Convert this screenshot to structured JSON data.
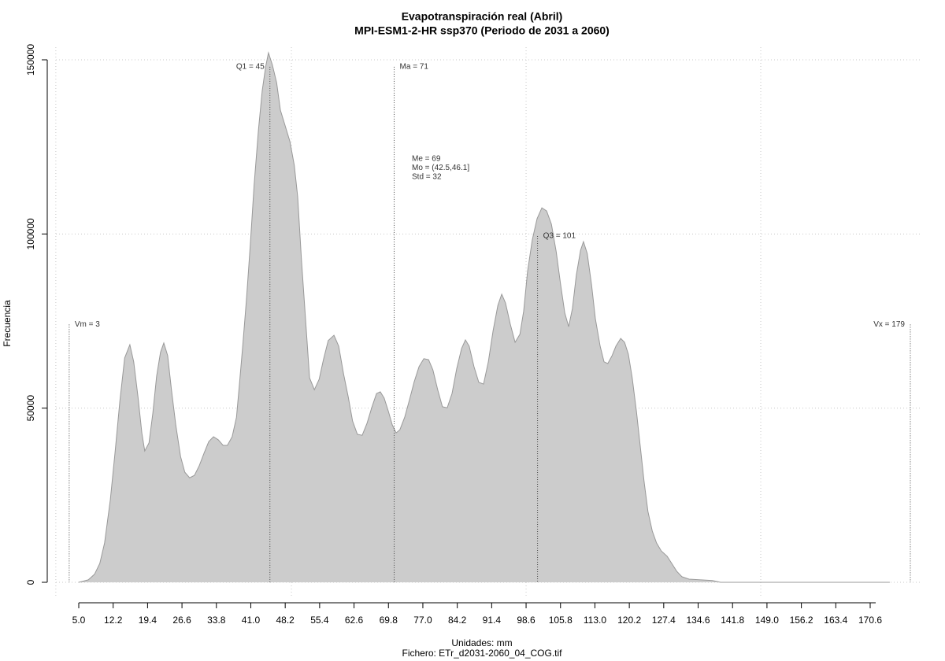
{
  "chart_data": {
    "type": "area",
    "title": "Evapotranspiración real (Abril)",
    "subtitle": "MPI-ESM1-2-HR ssp370 (Periodo de 2031 a 2060)",
    "xlabel": "Unidades: mm",
    "caption": "Fichero: ETr_d2031-2060_04_COG.tif",
    "ylabel": "Frecuencia",
    "color": "#cccccc",
    "line_color": "#999999",
    "xlim": [
      5.0,
      170.6
    ],
    "ylim": [
      0,
      150000
    ],
    "xticks": [
      {
        "value": 5.0,
        "label": "5.0"
      },
      12.2,
      19.4,
      26.6,
      33.8,
      {
        "value": 41.0,
        "label": "41.0"
      },
      48.2,
      55.4,
      62.6,
      69.8,
      {
        "value": 77.0,
        "label": "77.0"
      },
      84.2,
      91.4,
      98.6,
      105.8,
      {
        "value": 113.0,
        "label": "113.0"
      },
      120.2,
      127.4,
      134.6,
      141.8,
      {
        "value": 149.0,
        "label": "149.0"
      },
      156.2,
      163.4,
      170.6
    ],
    "yticks": [
      0,
      50000,
      100000,
      150000
    ],
    "xgrid": [
      0.2,
      49.5,
      98.6,
      147.7
    ],
    "grid": true,
    "x": [
      5.0,
      7.0,
      8.3,
      9.4,
      10.4,
      11.6,
      12.6,
      13.6,
      14.6,
      15.7,
      16.5,
      17.4,
      18.2,
      18.8,
      19.7,
      20.5,
      21.3,
      22.1,
      22.8,
      23.6,
      24.4,
      25.3,
      26.3,
      27.2,
      28.2,
      29.2,
      30.2,
      31.2,
      32.2,
      33.2,
      34.2,
      35.2,
      36.1,
      37.1,
      38.0,
      38.6,
      39.3,
      40.1,
      40.9,
      41.7,
      42.6,
      43.4,
      44.1,
      44.7,
      45.5,
      46.4,
      47.2,
      48.2,
      49.2,
      50.1,
      50.8,
      51.6,
      52.5,
      53.3,
      54.3,
      55.3,
      56.2,
      57.2,
      58.4,
      59.4,
      60.4,
      61.4,
      62.3,
      63.3,
      64.3,
      65.3,
      66.3,
      67.3,
      68.1,
      68.9,
      69.8,
      70.6,
      71.4,
      72.2,
      73.2,
      74.2,
      75.2,
      76.2,
      77.2,
      78.2,
      79.1,
      80.1,
      81.1,
      82.1,
      83.1,
      84.1,
      85.1,
      85.9,
      86.7,
      87.7,
      88.7,
      89.7,
      90.7,
      91.7,
      92.7,
      93.5,
      94.3,
      95.3,
      96.3,
      97.3,
      98.1,
      98.9,
      99.9,
      100.9,
      101.9,
      102.9,
      103.9,
      104.9,
      105.8,
      106.7,
      107.5,
      108.3,
      109.1,
      110.0,
      110.6,
      111.4,
      112.3,
      113.1,
      114.1,
      114.9,
      115.7,
      116.6,
      117.4,
      118.4,
      119.2,
      120.0,
      120.8,
      121.7,
      122.5,
      123.3,
      124.1,
      125.0,
      125.9,
      126.9,
      128.1,
      129.1,
      130.1,
      131.2,
      132.7,
      135.2,
      137.6,
      139.3,
      174.7
    ],
    "values": [
      0,
      700,
      2300,
      5400,
      11300,
      23700,
      37300,
      52000,
      64400,
      68200,
      63300,
      53100,
      42900,
      37700,
      40000,
      48600,
      59200,
      66000,
      68700,
      65100,
      55300,
      45200,
      36100,
      31600,
      30000,
      30700,
      33400,
      37000,
      40400,
      41800,
      40900,
      39300,
      39300,
      41800,
      47400,
      56500,
      67800,
      81300,
      97100,
      114100,
      129900,
      141200,
      148000,
      152000,
      148600,
      143400,
      135500,
      131000,
      126500,
      119700,
      110700,
      92600,
      74500,
      58700,
      55300,
      58300,
      63900,
      69400,
      70900,
      67800,
      59900,
      53100,
      46300,
      42500,
      42200,
      45600,
      50100,
      54200,
      54700,
      52900,
      49000,
      45200,
      42900,
      43800,
      47400,
      52400,
      57600,
      61900,
      64200,
      63900,
      61000,
      55300,
      50400,
      50100,
      54200,
      61400,
      67100,
      69600,
      67800,
      61900,
      57400,
      56900,
      63300,
      72300,
      79500,
      82700,
      80200,
      74100,
      68900,
      71200,
      77900,
      89200,
      98300,
      104400,
      107500,
      106600,
      102800,
      94900,
      85800,
      77300,
      73400,
      78600,
      88100,
      95300,
      97800,
      94400,
      85400,
      75700,
      67800,
      63300,
      62800,
      65100,
      67800,
      70000,
      68900,
      65500,
      58700,
      49000,
      38900,
      28900,
      20300,
      14700,
      11300,
      9000,
      7500,
      5400,
      3200,
      1600,
      900,
      700,
      500,
      0,
      0
    ],
    "markers": [
      {
        "label": "Vm = 3",
        "value": 3,
        "height": 74000,
        "side": "right"
      },
      {
        "label": "Q1 = 45",
        "value": 45,
        "height": 148000,
        "side": "left"
      },
      {
        "label": "Ma = 71",
        "value": 71,
        "height": 148000,
        "side": "right"
      },
      {
        "label": "Q3 = 101",
        "value": 101,
        "height": 99400,
        "side": "right"
      },
      {
        "label": "Vx = 179",
        "value": 179,
        "height": 74000,
        "side": "left"
      }
    ],
    "stats": [
      "Me = 69",
      "Mo = (42.5,46.1]",
      "Std = 32"
    ]
  }
}
